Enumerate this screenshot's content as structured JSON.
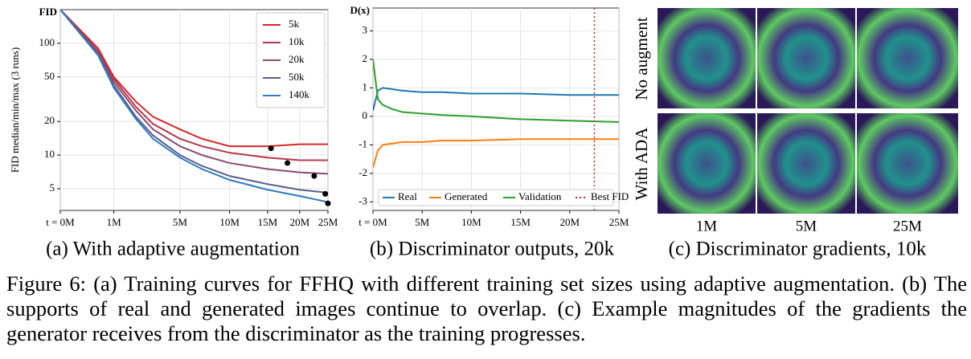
{
  "chart_data": [
    {
      "type": "line",
      "axis_title": "FID",
      "ylabel": "FID median/min/max (3 runs)",
      "x": [
        0,
        0.5,
        1,
        2,
        3,
        5,
        7,
        10,
        15,
        20,
        25
      ],
      "series": [
        {
          "name": "5k",
          "color": "#d62728",
          "values": [
            200,
            90,
            50,
            30,
            22,
            17,
            14,
            12,
            12,
            12.5,
            12.5
          ]
        },
        {
          "name": "10k",
          "color": "#b8364e",
          "values": [
            200,
            85,
            48,
            27,
            19,
            14,
            12,
            10.5,
            9.5,
            9,
            9
          ]
        },
        {
          "name": "20k",
          "color": "#8c4a6e",
          "values": [
            200,
            82,
            45,
            25,
            17,
            12,
            10,
            8.5,
            7.5,
            7,
            6.8
          ]
        },
        {
          "name": "50k",
          "color": "#5a5f8e",
          "values": [
            200,
            80,
            42,
            22,
            15,
            10,
            8,
            6.5,
            5.5,
            4.9,
            4.6
          ]
        },
        {
          "name": "140k",
          "color": "#2f7bbf",
          "values": [
            200,
            78,
            40,
            21,
            14,
            9.5,
            7.5,
            6,
            4.9,
            4.3,
            3.8
          ]
        }
      ],
      "best_points": {
        "x": [
          15.5,
          18,
          22.5,
          24.5,
          25
        ],
        "values": [
          11.5,
          8.5,
          6.5,
          4.5,
          3.7
        ],
        "color": "#000000"
      },
      "xscale": "sqrt",
      "yscale": "log",
      "grid": true,
      "legend": "upper right",
      "xlim": [
        0,
        25
      ],
      "ylim": [
        3.2,
        200
      ],
      "xticks": [
        {
          "value": 0,
          "label": "t = 0M"
        },
        {
          "value": 1,
          "label": "1M"
        },
        {
          "value": 5,
          "label": "5M"
        },
        {
          "value": 10,
          "label": "10M"
        },
        {
          "value": 15,
          "label": "15M"
        },
        {
          "value": 20,
          "label": "20M"
        },
        {
          "value": 25,
          "label": "25M"
        }
      ],
      "yticks": [
        5,
        10,
        20,
        50,
        100
      ]
    },
    {
      "type": "line",
      "axis_title": "D(x)",
      "x": [
        0,
        0.5,
        1,
        2,
        3,
        5,
        7,
        10,
        15,
        20,
        25
      ],
      "series": [
        {
          "name": "Real",
          "color": "#1f77b4",
          "values": [
            0.2,
            0.9,
            1.0,
            0.95,
            0.9,
            0.85,
            0.85,
            0.8,
            0.8,
            0.75,
            0.75
          ]
        },
        {
          "name": "Generated",
          "color": "#ff7f0e",
          "values": [
            -1.8,
            -1.2,
            -1.0,
            -0.95,
            -0.9,
            -0.9,
            -0.85,
            -0.85,
            -0.8,
            -0.8,
            -0.8
          ]
        },
        {
          "name": "Validation",
          "color": "#2ca02c",
          "values": [
            2.0,
            0.6,
            0.4,
            0.25,
            0.15,
            0.1,
            0.05,
            0,
            -0.1,
            -0.15,
            -0.2
          ]
        }
      ],
      "best_line": {
        "name": "Best FID",
        "x": 22.5,
        "color": "#d62728"
      },
      "xscale": "linear",
      "yscale": "linear",
      "grid": true,
      "legend": "lower center",
      "xlim": [
        0,
        25
      ],
      "ylim": [
        -3.3,
        3.8
      ],
      "xticks": [
        {
          "value": 0,
          "label": "t = 0M"
        },
        {
          "value": 5,
          "label": "5M"
        },
        {
          "value": 10,
          "label": "10M"
        },
        {
          "value": 15,
          "label": "15M"
        },
        {
          "value": 20,
          "label": "20M"
        },
        {
          "value": 25,
          "label": "25M"
        }
      ],
      "yticks": [
        -3,
        -2,
        -1,
        0,
        1,
        2,
        3
      ]
    }
  ],
  "panel_c": {
    "rows": [
      "No augment",
      "With ADA"
    ],
    "columns": [
      "1M",
      "5M",
      "25M"
    ]
  },
  "subcaptions": [
    "(a) With adaptive augmentation",
    "(b) Discriminator outputs, 20k",
    "(c) Discriminator gradients, 10k"
  ],
  "caption": "Figure 6: (a) Training curves for FFHQ with different training set sizes using adaptive augmentation. (b) The supports of real and generated images continue to overlap. (c) Example magnitudes of the gradients the generator receives from the discriminator as the training progresses."
}
